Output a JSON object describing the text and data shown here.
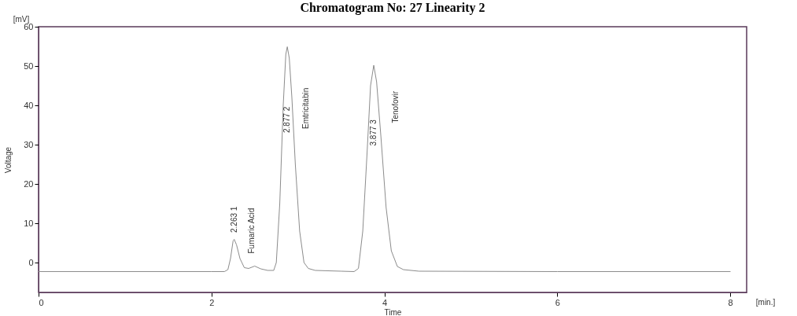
{
  "chart_data": {
    "type": "line",
    "title": "Chromatogram No: 27 Linearity 2",
    "xlabel": "Time",
    "ylabel": "Voltage",
    "xlim": [
      0,
      8.19
    ],
    "ylim": [
      -7.6,
      60
    ],
    "xticks": [
      0,
      2,
      4,
      6,
      8
    ],
    "yticks": [
      0,
      10,
      20,
      30,
      40,
      50,
      60
    ],
    "line_style": "solid",
    "series": [
      {
        "color": "#8c8c8c",
        "x": [
          0,
          2.0,
          2.15,
          2.19,
          2.22,
          2.25,
          2.263,
          2.29,
          2.33,
          2.38,
          2.43,
          2.5,
          2.57,
          2.65,
          2.72,
          2.75,
          2.79,
          2.83,
          2.86,
          2.877,
          2.9,
          2.93,
          2.97,
          3.02,
          3.07,
          3.12,
          3.2,
          3.5,
          3.65,
          3.7,
          3.75,
          3.8,
          3.84,
          3.877,
          3.91,
          3.96,
          4.02,
          4.08,
          4.15,
          4.22,
          4.4,
          6,
          8
        ],
        "values": [
          -2.3,
          -2.3,
          -2.3,
          -1.8,
          1,
          5.5,
          5.9,
          4.5,
          1,
          -1.3,
          -1.5,
          -0.9,
          -1.6,
          -2.0,
          -2.0,
          0,
          15,
          40,
          53,
          54.9,
          52,
          42,
          25,
          8,
          0,
          -1.5,
          -2.0,
          -2.2,
          -2.3,
          -1.5,
          8,
          28,
          45,
          50.2,
          46,
          32,
          14,
          3,
          -1,
          -1.8,
          -2.2,
          -2.3,
          -2.3
        ]
      }
    ],
    "annotations": [
      "2.263  1",
      "Fumaric Acid",
      "2.877  2",
      "Emtricitabin",
      "3.877  3",
      "Tenofovir",
      "[mV]",
      "[min.]"
    ]
  }
}
